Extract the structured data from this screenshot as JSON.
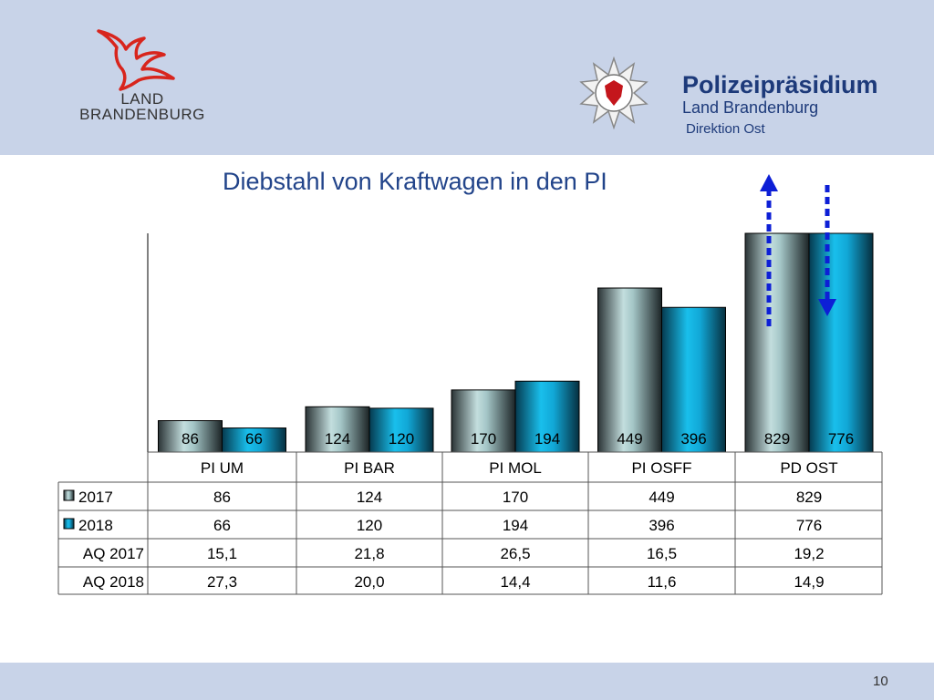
{
  "header": {
    "land_logo_line1": "LAND",
    "land_logo_line2": "BRANDENBURG",
    "police_title": "Polizeipräsidium",
    "police_subtitle": "Land Brandenburg",
    "police_direktion": "Direktion Ost"
  },
  "slide": {
    "title": "Diebstahl von Kraftwagen in den PI",
    "page_number": "10"
  },
  "colors": {
    "header_band": "#c8d3e8",
    "title_text": "#22448a",
    "bar_2017": "#9fc2c3",
    "bar_2018": "#15a9d8",
    "arrow": "#0d1fd6"
  },
  "chart_data": {
    "type": "bar",
    "categories": [
      "PI UM",
      "PI BAR",
      "PI MOL",
      "PI OSFF",
      "PD OST"
    ],
    "series": [
      {
        "name": "2017",
        "values": [
          86,
          124,
          170,
          449,
          829
        ]
      },
      {
        "name": "2018",
        "values": [
          66,
          120,
          194,
          396,
          776
        ]
      }
    ],
    "data_labels": {
      "2017": [
        "86",
        "124",
        "170",
        "449",
        "829"
      ],
      "2018": [
        "66",
        "120",
        "194",
        "396",
        "776"
      ]
    },
    "table": {
      "rows": [
        {
          "label": "2017",
          "legend_key": "2017",
          "values": [
            "86",
            "124",
            "170",
            "449",
            "829"
          ]
        },
        {
          "label": "2018",
          "legend_key": "2018",
          "values": [
            "66",
            "120",
            "194",
            "396",
            "776"
          ]
        },
        {
          "label": "AQ 2017",
          "legend_key": null,
          "values": [
            "15,1",
            "21,8",
            "26,5",
            "16,5",
            "19,2"
          ]
        },
        {
          "label": "AQ 2018",
          "legend_key": null,
          "values": [
            "27,3",
            "20,0",
            "14,4",
            "11,6",
            "14,9"
          ]
        }
      ]
    },
    "annotations": [
      {
        "type": "arrow",
        "direction": "up",
        "meaning": "increase"
      },
      {
        "type": "arrow",
        "direction": "down",
        "meaning": "decrease"
      }
    ],
    "axis_broken_last_category": true,
    "grid": false,
    "legend": "in-table"
  }
}
